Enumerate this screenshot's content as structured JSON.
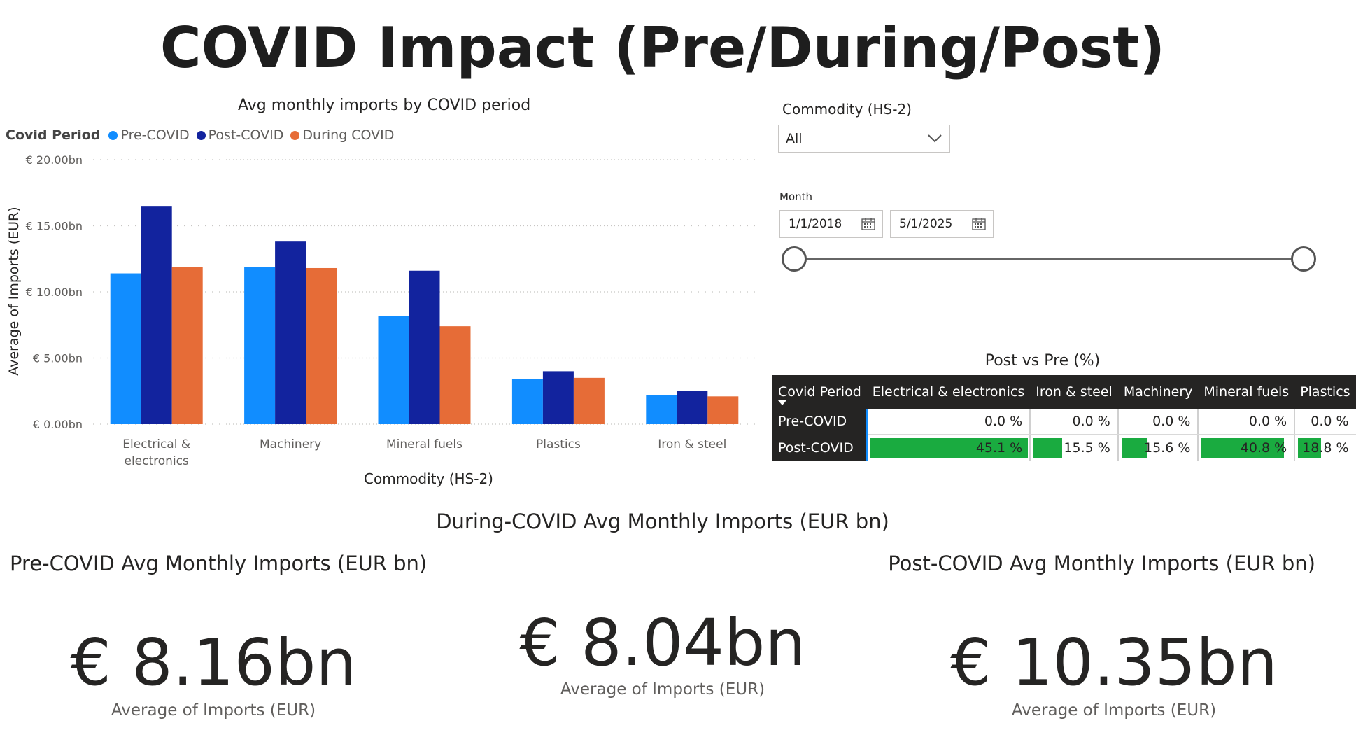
{
  "page": {
    "title": "COVID Impact (Pre/During/Post)"
  },
  "chart": {
    "legend_title": "Covid Period",
    "colors": {
      "Pre-COVID": "#118dff",
      "Post-COVID": "#12239e",
      "During COVID": "#e66c37"
    }
  },
  "chart_data": {
    "type": "bar",
    "title": "Avg monthly imports by COVID period",
    "xlabel": "Commodity (HS-2)",
    "ylabel": "Average of Imports (EUR)",
    "ylim": [
      0,
      20
    ],
    "yticks": [
      "€ 0.00bn",
      "€ 5.00bn",
      "€ 10.00bn",
      "€ 15.00bn",
      "€ 20.00bn"
    ],
    "grid": true,
    "legend_position": "top-left",
    "categories": [
      "Electrical & electronics",
      "Machinery",
      "Mineral fuels",
      "Plastics",
      "Iron & steel"
    ],
    "category_lines": [
      [
        "Electrical &",
        "electronics"
      ],
      [
        "Machinery"
      ],
      [
        "Mineral fuels"
      ],
      [
        "Plastics"
      ],
      [
        "Iron & steel"
      ]
    ],
    "series": [
      {
        "name": "Pre-COVID",
        "values": [
          11.4,
          11.9,
          8.2,
          3.4,
          2.2
        ]
      },
      {
        "name": "Post-COVID",
        "values": [
          16.5,
          13.8,
          11.6,
          4.0,
          2.5
        ]
      },
      {
        "name": "During COVID",
        "values": [
          11.9,
          11.8,
          7.4,
          3.5,
          2.1
        ]
      }
    ]
  },
  "slicers": {
    "commodity_label": "Commodity (HS-2)",
    "commodity_value": "All",
    "month_label": "Month",
    "start_date": "1/1/2018",
    "end_date": "5/1/2025"
  },
  "matrix": {
    "title": "Post vs Pre (%)",
    "header": [
      "Covid Period",
      "Electrical & electronics",
      "Iron & steel",
      "Machinery",
      "Mineral fuels",
      "Plastics"
    ],
    "rows": [
      {
        "label": "Pre-COVID",
        "cells": [
          "0.0 %",
          "0.0 %",
          "0.0 %",
          "0.0 %",
          "0.0 %"
        ],
        "values": [
          0,
          0,
          0,
          0,
          0
        ]
      },
      {
        "label": "Post-COVID",
        "cells": [
          "45.1 %",
          "15.5 %",
          "15.6 %",
          "40.8 %",
          "18.8 %"
        ],
        "values": [
          45.1,
          15.5,
          15.6,
          40.8,
          18.8
        ]
      }
    ]
  },
  "cards": {
    "during": {
      "title": "During-COVID Avg Monthly Imports (EUR bn)",
      "value": "€ 8.04bn",
      "label": "Average of Imports (EUR)"
    },
    "pre": {
      "title": "Pre-COVID Avg Monthly Imports (EUR bn)",
      "value": "€ 8.16bn",
      "label": "Average of Imports (EUR)"
    },
    "post": {
      "title": "Post-COVID Avg Monthly Imports (EUR bn)",
      "value": "€ 10.35bn",
      "label": "Average of Imports (EUR)"
    }
  }
}
